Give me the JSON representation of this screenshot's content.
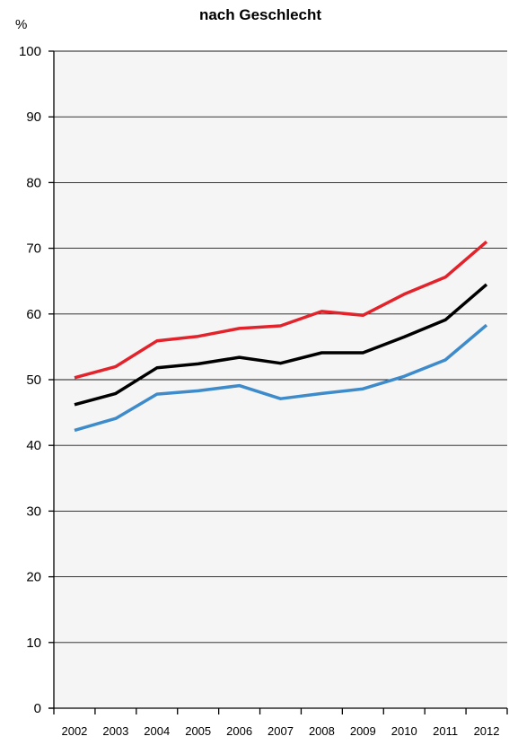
{
  "chart_data": {
    "type": "line",
    "title": "nach Geschlecht",
    "ylabel": "%",
    "xlabel": "",
    "x": [
      "2002",
      "2003",
      "2004",
      "2005",
      "2006",
      "2007",
      "2008",
      "2009",
      "2010",
      "2011",
      "2012"
    ],
    "ylim": [
      0,
      100
    ],
    "yticks": [
      0,
      10,
      20,
      30,
      40,
      50,
      60,
      70,
      80,
      90,
      100
    ],
    "grid": true,
    "series": [
      {
        "color": "#e3232b",
        "values": [
          50.3,
          52.0,
          55.9,
          56.6,
          57.8,
          58.2,
          60.4,
          59.8,
          63.0,
          65.6,
          71.0
        ]
      },
      {
        "color": "#000000",
        "values": [
          46.2,
          47.9,
          51.8,
          52.4,
          53.4,
          52.5,
          54.1,
          54.1,
          56.5,
          59.1,
          64.5
        ]
      },
      {
        "color": "#3d8bca",
        "values": [
          42.3,
          44.1,
          47.8,
          48.3,
          49.1,
          47.1,
          47.9,
          48.6,
          50.5,
          53.0,
          58.3
        ]
      }
    ]
  }
}
